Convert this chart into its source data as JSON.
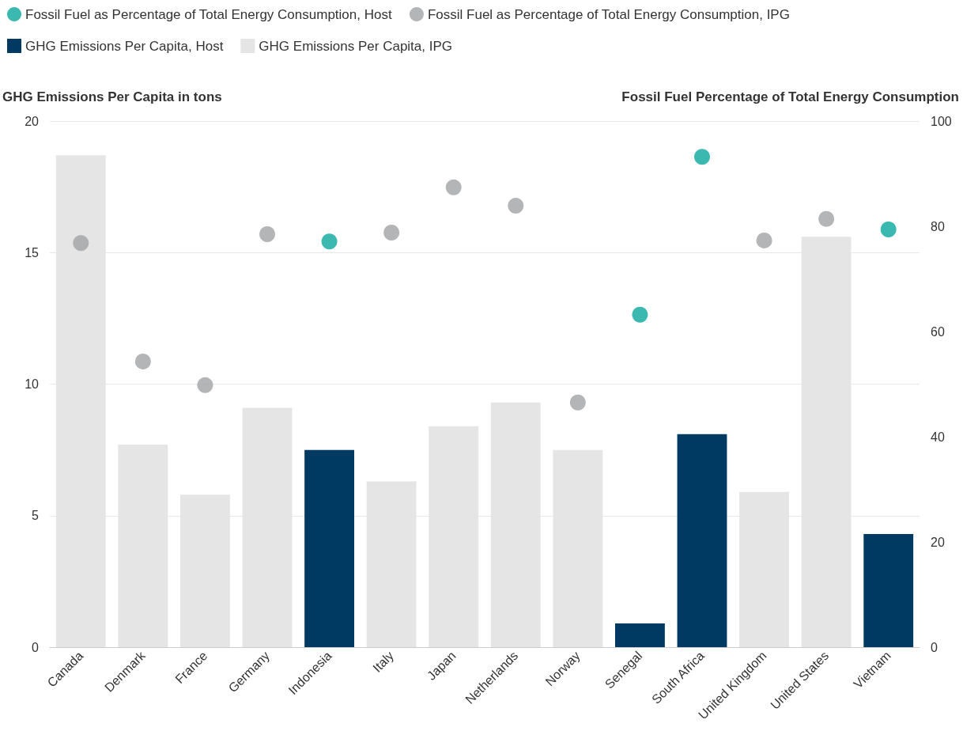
{
  "chart_data": {
    "type": "bar",
    "ylabel": "GHG Emissions Per Capita in tons",
    "y2label": "Fossil Fuel Percentage of Total Energy Consumption",
    "categories": [
      "Canada",
      "Denmark",
      "France",
      "Germany",
      "Indonesia",
      "Italy",
      "Japan",
      "Netherlands",
      "Norway",
      "Senegal",
      "South Africa",
      "United Kingdom",
      "United States",
      "Vietnam"
    ],
    "series": [
      {
        "name": "Fossil Fuel as Percentage of Total Energy Consumption, Host",
        "type": "scatter",
        "axis": "y2",
        "color": "#0aa89e",
        "values": [
          null,
          null,
          null,
          null,
          77.1,
          null,
          null,
          null,
          null,
          63.2,
          93.2,
          null,
          null,
          79.4
        ]
      },
      {
        "name": "Fossil Fuel as Percentage of Total Energy Consumption, IPG",
        "type": "scatter",
        "axis": "y2",
        "color": "#a0a2a5",
        "values": [
          76.8,
          54.3,
          49.8,
          78.5,
          null,
          78.8,
          87.4,
          83.9,
          46.5,
          null,
          null,
          77.3,
          81.4,
          null
        ]
      },
      {
        "name": "GHG Emissions Per Capita, Host",
        "color": "#003a63",
        "values": [
          null,
          null,
          null,
          null,
          7.5,
          null,
          null,
          null,
          null,
          0.9,
          8.1,
          null,
          null,
          4.3
        ]
      },
      {
        "name": "GHG Emissions Per Capita, IPG",
        "color": "#e5e5e5",
        "values": [
          18.7,
          7.7,
          5.8,
          9.1,
          null,
          6.3,
          8.4,
          9.3,
          7.5,
          null,
          null,
          5.9,
          15.6,
          null
        ]
      }
    ],
    "ylim": [
      0,
      20
    ],
    "yticks": [
      0,
      5,
      10,
      15,
      20
    ],
    "y2lim": [
      0,
      100
    ],
    "y2ticks": [
      0,
      20,
      40,
      60,
      80,
      100
    ],
    "grid": "y",
    "legend": "top left",
    "marker": "circle"
  }
}
